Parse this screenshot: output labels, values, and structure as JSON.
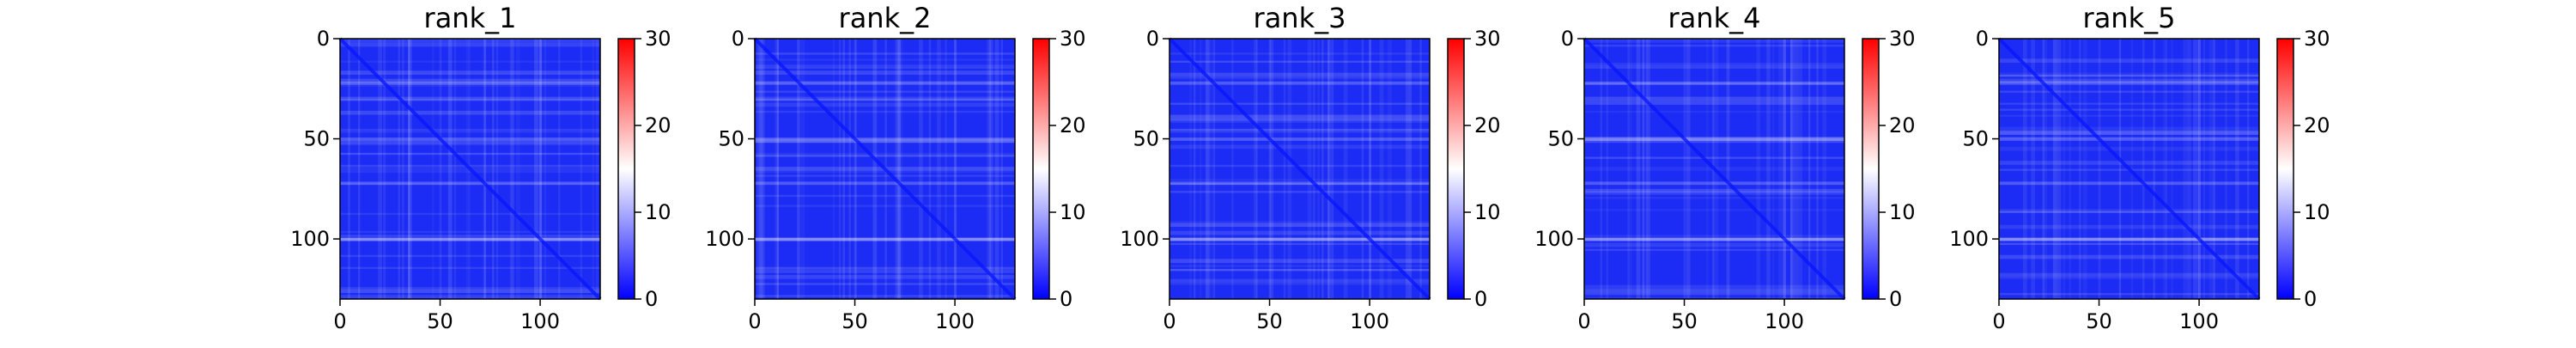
{
  "chart_data": [
    {
      "type": "heatmap",
      "title": "rank_1",
      "x_ticks": [
        "0",
        "50",
        "100"
      ],
      "y_ticks": [
        "0",
        "50",
        "100"
      ],
      "colorbar_ticks": [
        "0",
        "10",
        "20",
        "30"
      ],
      "clim": [
        0,
        30
      ],
      "colormap": "bwr",
      "matrix_size": 130,
      "bright_rows": [
        100,
        72,
        50,
        22
      ]
    },
    {
      "type": "heatmap",
      "title": "rank_2",
      "x_ticks": [
        "0",
        "50",
        "100"
      ],
      "y_ticks": [
        "0",
        "50",
        "100"
      ],
      "colorbar_ticks": [
        "0",
        "10",
        "20",
        "30"
      ],
      "clim": [
        0,
        30
      ],
      "colormap": "bwr",
      "matrix_size": 130,
      "bright_rows": [
        100,
        72,
        50,
        22
      ]
    },
    {
      "type": "heatmap",
      "title": "rank_3",
      "x_ticks": [
        "0",
        "50",
        "100"
      ],
      "y_ticks": [
        "0",
        "50",
        "100"
      ],
      "colorbar_ticks": [
        "0",
        "10",
        "20",
        "30"
      ],
      "clim": [
        0,
        30
      ],
      "colormap": "bwr",
      "matrix_size": 130,
      "bright_rows": [
        100,
        72,
        50,
        22
      ]
    },
    {
      "type": "heatmap",
      "title": "rank_4",
      "x_ticks": [
        "0",
        "50",
        "100"
      ],
      "y_ticks": [
        "0",
        "50",
        "100"
      ],
      "colorbar_ticks": [
        "0",
        "10",
        "20",
        "30"
      ],
      "clim": [
        0,
        30
      ],
      "colormap": "bwr",
      "matrix_size": 130,
      "bright_rows": [
        100,
        72,
        50,
        22
      ]
    },
    {
      "type": "heatmap",
      "title": "rank_5",
      "x_ticks": [
        "0",
        "50",
        "100"
      ],
      "y_ticks": [
        "0",
        "50",
        "100"
      ],
      "colorbar_ticks": [
        "0",
        "10",
        "20",
        "30"
      ],
      "clim": [
        0,
        30
      ],
      "colormap": "bwr",
      "matrix_size": 130,
      "bright_rows": [
        100,
        72,
        50,
        22
      ]
    }
  ],
  "colors": {
    "low": "#0000ff",
    "mid": "#ffffff",
    "high": "#ff0000",
    "base": "#1c2cf4"
  }
}
